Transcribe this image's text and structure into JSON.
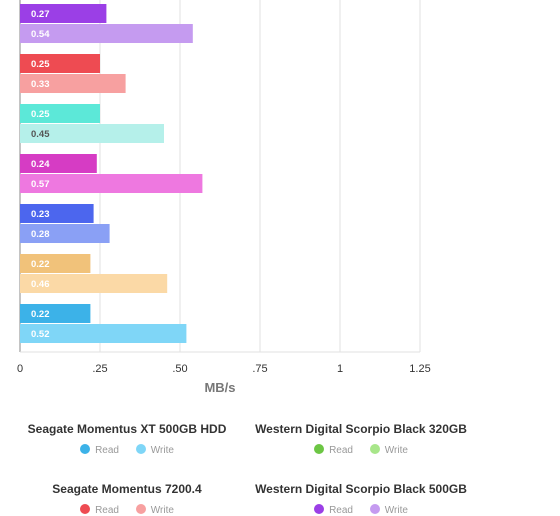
{
  "chart_data": {
    "type": "bar",
    "orientation": "horizontal",
    "xlabel": "MB/s",
    "xlim": [
      0,
      1.25
    ],
    "xticks": [
      "0",
      ".25",
      ".50",
      ".75",
      "1",
      "1.25"
    ],
    "xtick_values": [
      0,
      0.25,
      0.5,
      0.75,
      1.0,
      1.25
    ],
    "grid": true,
    "legend_position": "bottom",
    "series_groups": [
      {
        "title": "",
        "read": 0.27,
        "write": 0.54,
        "read_color": "#9b3fe6",
        "write_color": "#c59bf0",
        "write_label_dark": false
      },
      {
        "title": "",
        "read": 0.25,
        "write": 0.33,
        "read_color": "#ee4b52",
        "write_color": "#f7a0a0",
        "write_label_dark": false
      },
      {
        "title": "",
        "read": 0.25,
        "write": 0.45,
        "read_color": "#5ce8d8",
        "write_color": "#b5f0ea",
        "write_label_dark": true
      },
      {
        "title": "",
        "read": 0.24,
        "write": 0.57,
        "read_color": "#d63cc4",
        "write_color": "#ee78e0",
        "write_label_dark": false
      },
      {
        "title": "",
        "read": 0.23,
        "write": 0.28,
        "read_color": "#4c66ee",
        "write_color": "#8aa0f5",
        "write_label_dark": false
      },
      {
        "title": "",
        "read": 0.22,
        "write": 0.46,
        "read_color": "#f1c27a",
        "write_color": "#fbd9a6",
        "write_label_dark": false
      },
      {
        "title": "",
        "read": 0.22,
        "write": 0.52,
        "read_color": "#3cb2e8",
        "write_color": "#7fd6f7",
        "write_label_dark": false
      }
    ],
    "legend": [
      {
        "name": "Seagate Momentus XT 500GB HDD",
        "read_label": "Read",
        "write_label": "Write",
        "read_color": "#3cb2e8",
        "write_color": "#7fd6f7"
      },
      {
        "name": "Western Digital Scorpio Black 320GB",
        "read_label": "Read",
        "write_label": "Write",
        "read_color": "#6cc644",
        "write_color": "#a8e68a"
      },
      {
        "name": "Seagate Momentus 7200.4",
        "read_label": "Read",
        "write_label": "Write",
        "read_color": "#ee4b52",
        "write_color": "#f7a0a0"
      },
      {
        "name": "Western Digital Scorpio Black 500GB",
        "read_label": "Read",
        "write_label": "Write",
        "read_color": "#9b3fe6",
        "write_color": "#c59bf0"
      }
    ]
  }
}
